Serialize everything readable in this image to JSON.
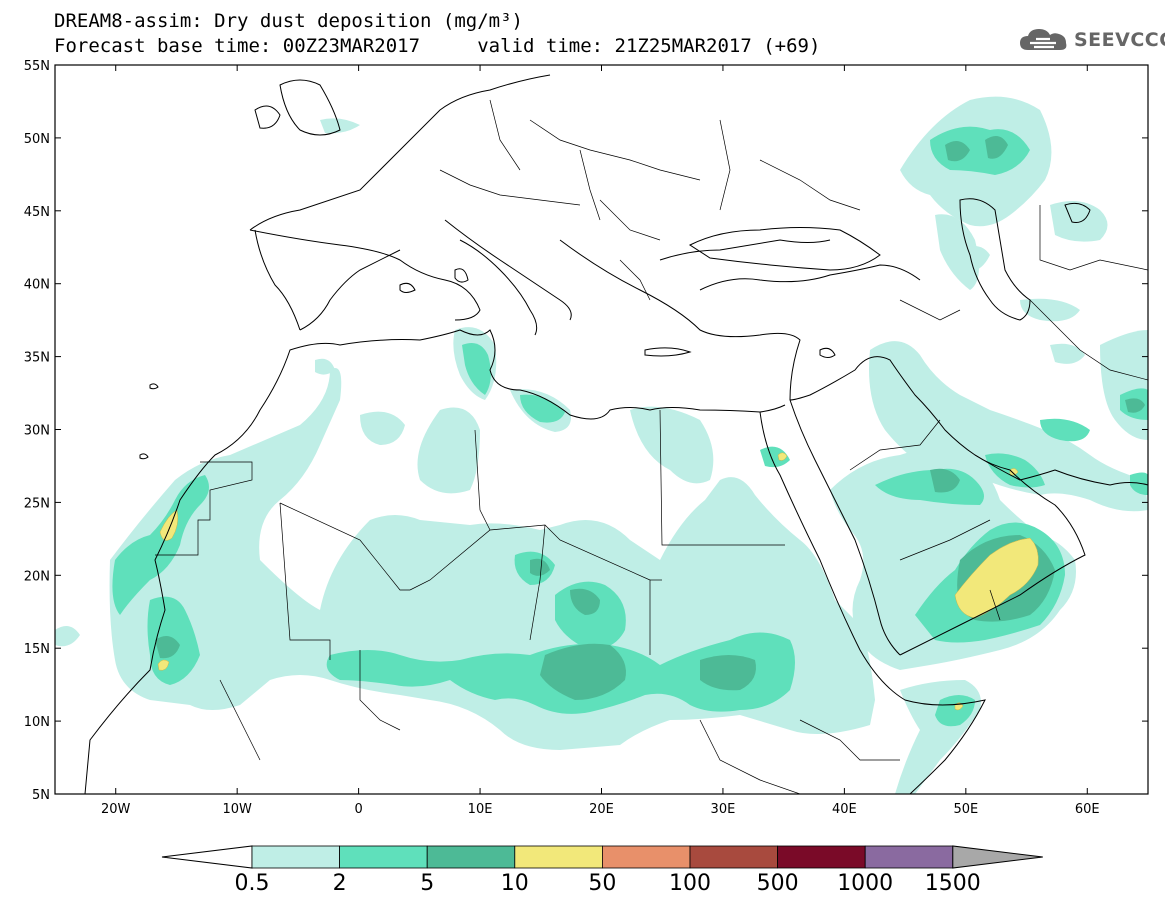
{
  "header": {
    "title_line1": "DREAM8-assim: Dry dust deposition (mg/m³)",
    "title_line2": "Forecast base time: 00Z23MAR2017     valid time: 21Z25MAR2017 (+69)",
    "logo_text": "SEEVCCC"
  },
  "map": {
    "lon_range": [
      -25,
      65
    ],
    "lat_range": [
      5,
      55
    ],
    "lat_ticks": [
      {
        "value": 55,
        "label": "55N"
      },
      {
        "value": 50,
        "label": "50N"
      },
      {
        "value": 45,
        "label": "45N"
      },
      {
        "value": 40,
        "label": "40N"
      },
      {
        "value": 35,
        "label": "35N"
      },
      {
        "value": 30,
        "label": "30N"
      },
      {
        "value": 25,
        "label": "25N"
      },
      {
        "value": 20,
        "label": "20N"
      },
      {
        "value": 15,
        "label": "15N"
      },
      {
        "value": 10,
        "label": "10N"
      },
      {
        "value": 5,
        "label": "5N"
      }
    ],
    "lon_ticks": [
      {
        "value": -20,
        "label": "20W"
      },
      {
        "value": -10,
        "label": "10W"
      },
      {
        "value": 0,
        "label": "0"
      },
      {
        "value": 10,
        "label": "10E"
      },
      {
        "value": 20,
        "label": "20E"
      },
      {
        "value": 30,
        "label": "30E"
      },
      {
        "value": 40,
        "label": "40E"
      },
      {
        "value": 50,
        "label": "50E"
      },
      {
        "value": 60,
        "label": "60E"
      }
    ]
  },
  "colorbar": {
    "labels": [
      "0.5",
      "2",
      "5",
      "10",
      "50",
      "100",
      "500",
      "1000",
      "1500"
    ],
    "colors": [
      "#bfeee6",
      "#5fe0bb",
      "#4dba96",
      "#f2e87a",
      "#e8906a",
      "#a84a3e",
      "#7a0a28",
      "#8a6aa0"
    ],
    "under_color": "#ffffff",
    "over_color": "#a8a8a8"
  },
  "colors": {
    "lightest": "#bfeee6",
    "light": "#5fe0bb",
    "medium": "#4dba96",
    "yellow": "#f2e87a",
    "coast": "#000000",
    "border": "#000000"
  }
}
